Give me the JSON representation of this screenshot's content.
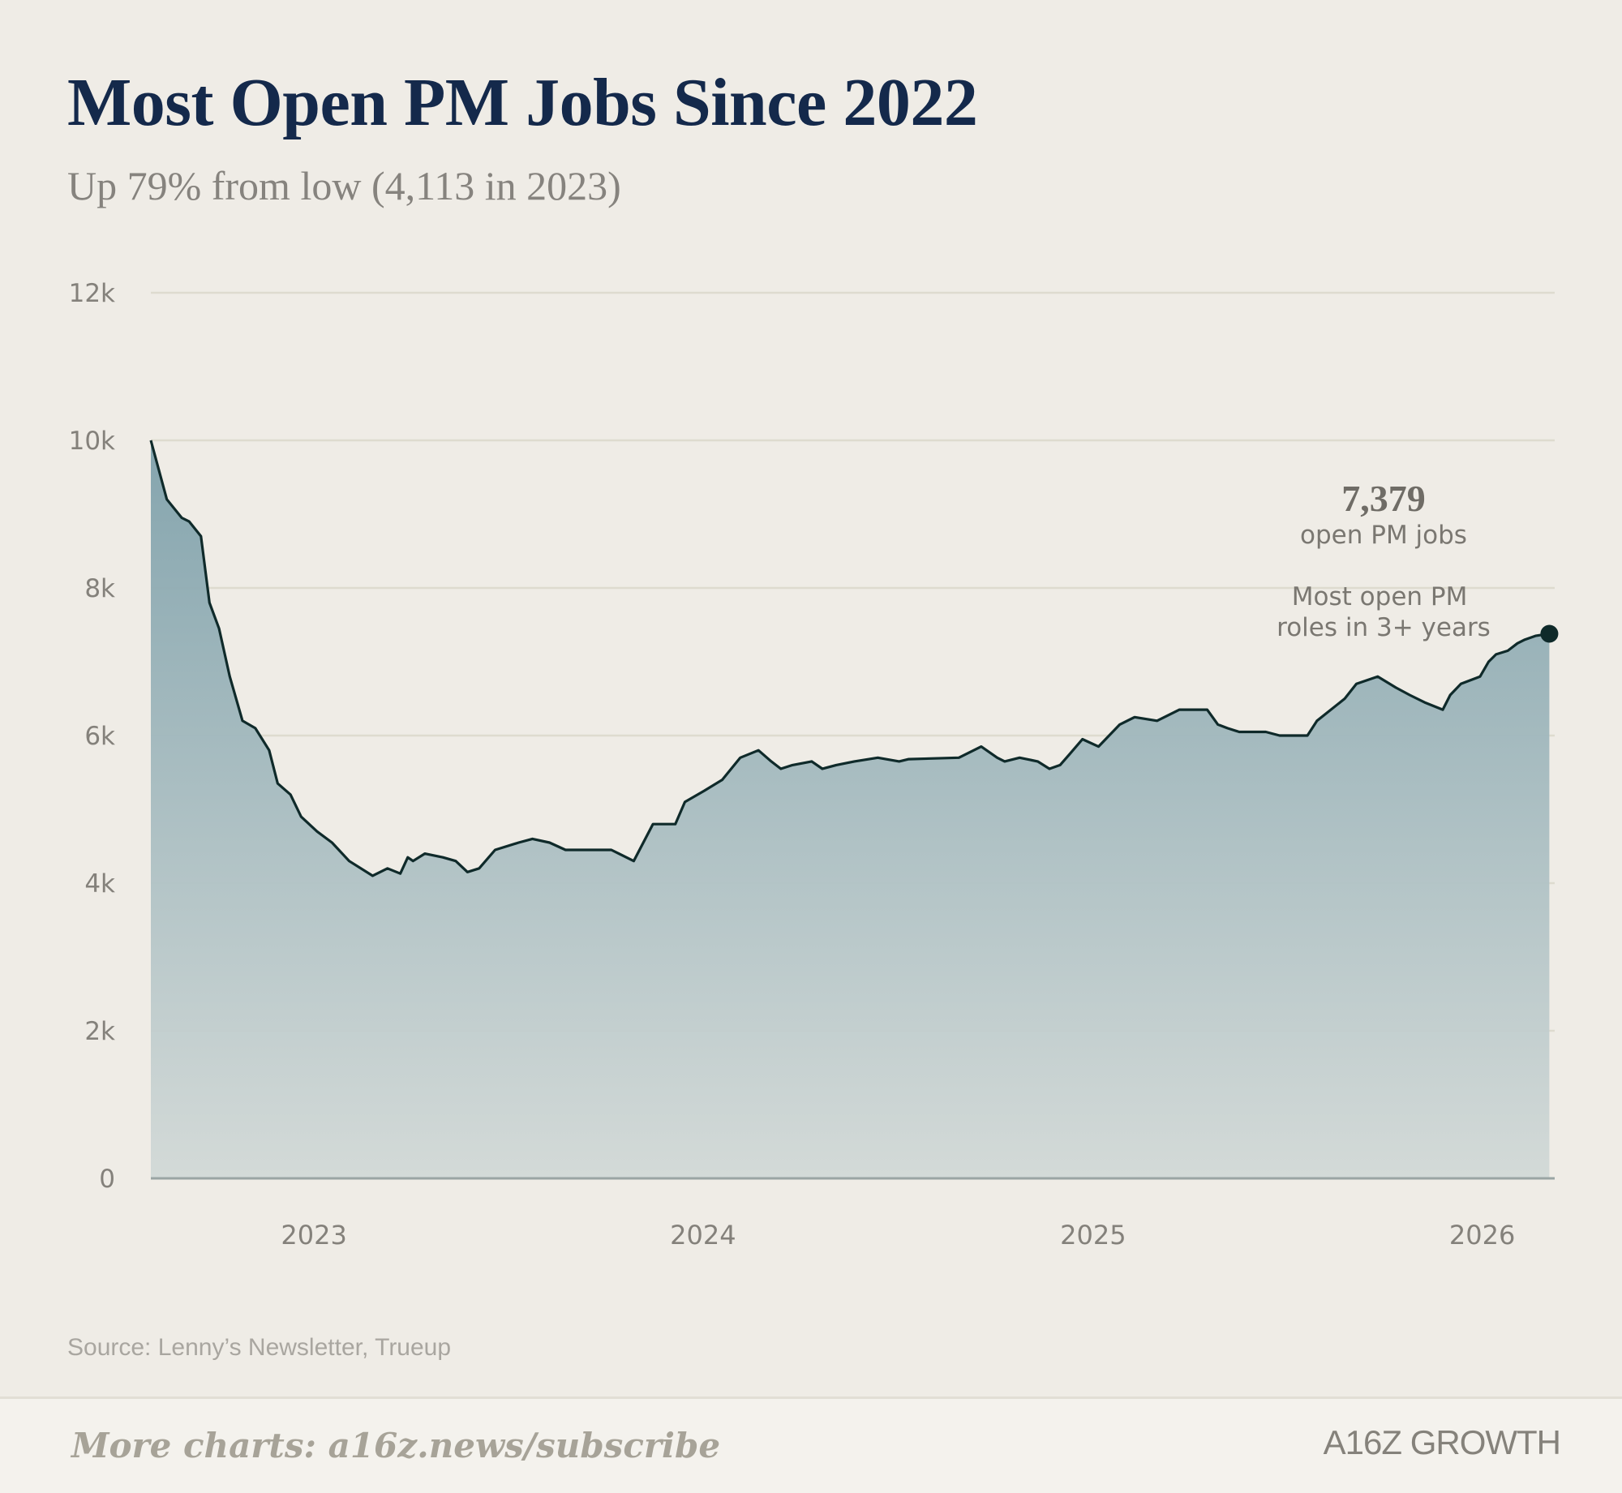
{
  "page": {
    "title": "Most Open PM Jobs Since 2022",
    "subtitle": "Up 79% from low (4,113 in 2023)",
    "source": "Source: Lenny’s Newsletter, Trueup",
    "footer_cta": "More charts: a16z.news/subscribe",
    "brand": "A16Z GROWTH"
  },
  "chart_data": {
    "type": "area",
    "title": "Most Open PM Jobs Since 2022",
    "subtitle": "Up 79% from low (4,113 in 2023)",
    "xlabel": "",
    "ylabel": "",
    "ylim": [
      0,
      12000
    ],
    "xlim": [
      "2022-08-01",
      "2026-03-10"
    ],
    "y_ticks": [
      0,
      2000,
      4000,
      6000,
      8000,
      10000,
      12000
    ],
    "y_tick_labels": [
      "0",
      "2k",
      "4k",
      "6k",
      "8k",
      "10k",
      "12k"
    ],
    "x_ticks": [
      "2023-01-01",
      "2024-01-01",
      "2025-01-01",
      "2026-01-01"
    ],
    "x_tick_labels": [
      "2023",
      "2024",
      "2025",
      "2026"
    ],
    "grid": true,
    "legend": "none",
    "colors": {
      "line": "#0f2a2a",
      "fill_top": "#7fa1ab",
      "fill_bottom": "#d2d9d7",
      "grid": "#dedbcf",
      "axis_text": "#84817b"
    },
    "series": [
      {
        "x": [
          "2022-08-01",
          "2022-08-16",
          "2022-08-30",
          "2022-09-06",
          "2022-09-17",
          "2022-09-25",
          "2022-10-04",
          "2022-10-14",
          "2022-10-26",
          "2022-11-07",
          "2022-11-20",
          "2022-11-28",
          "2022-12-10",
          "2022-12-20",
          "2023-01-04",
          "2023-01-18",
          "2023-02-03",
          "2023-02-25",
          "2023-03-11",
          "2023-03-23",
          "2023-03-30",
          "2023-04-04",
          "2023-04-15",
          "2023-05-02",
          "2023-05-14",
          "2023-05-25",
          "2023-06-05",
          "2023-06-20",
          "2023-07-12",
          "2023-07-25",
          "2023-08-10",
          "2023-08-25",
          "2023-09-12",
          "2023-10-07",
          "2023-10-28",
          "2023-11-15",
          "2023-12-06",
          "2023-12-15",
          "2024-01-02",
          "2024-01-19",
          "2024-02-05",
          "2024-02-22",
          "2024-03-05",
          "2024-03-14",
          "2024-03-25",
          "2024-04-12",
          "2024-04-22",
          "2024-05-05",
          "2024-05-22",
          "2024-06-13",
          "2024-07-03",
          "2024-07-12",
          "2024-08-28",
          "2024-09-18",
          "2024-10-03",
          "2024-10-10",
          "2024-10-24",
          "2024-11-10",
          "2024-11-21",
          "2024-12-01",
          "2024-12-10",
          "2024-12-22",
          "2025-01-06",
          "2025-01-26",
          "2025-02-09",
          "2025-03-02",
          "2025-03-23",
          "2025-04-18",
          "2025-04-28",
          "2025-05-07",
          "2025-05-18",
          "2025-06-12",
          "2025-06-25",
          "2025-07-07",
          "2025-07-21",
          "2025-07-30",
          "2025-08-25",
          "2025-09-05",
          "2025-09-25",
          "2025-10-12",
          "2025-10-25",
          "2025-11-08",
          "2025-11-25",
          "2025-12-02",
          "2025-12-12",
          "2025-12-30",
          "2026-01-07",
          "2026-01-14",
          "2026-01-25",
          "2026-02-03",
          "2026-02-10",
          "2026-02-20",
          "2026-03-05"
        ],
        "values": [
          10000,
          9200,
          8950,
          8900,
          8700,
          7800,
          7450,
          6800,
          6200,
          6100,
          5800,
          5350,
          5200,
          4900,
          4700,
          4550,
          4300,
          4100,
          4200,
          4130,
          4350,
          4300,
          4400,
          4350,
          4300,
          4150,
          4200,
          4450,
          4550,
          4600,
          4550,
          4450,
          4450,
          4450,
          4300,
          4800,
          4800,
          5100,
          5250,
          5400,
          5700,
          5800,
          5650,
          5550,
          5600,
          5650,
          5550,
          5600,
          5650,
          5700,
          5650,
          5680,
          5700,
          5850,
          5700,
          5650,
          5700,
          5650,
          5550,
          5600,
          5750,
          5950,
          5850,
          6150,
          6250,
          6200,
          6350,
          6350,
          6150,
          6100,
          6050,
          6050,
          6000,
          6000,
          6000,
          6200,
          6500,
          6700,
          6800,
          6650,
          6550,
          6450,
          6350,
          6550,
          6700,
          6800,
          7000,
          7100,
          7150,
          7250,
          7300,
          7350,
          7379
        ]
      }
    ],
    "annotations": [
      {
        "value": "7,379",
        "text": "open PM jobs"
      },
      {
        "text": "Most open PM roles in 3+ years"
      }
    ]
  }
}
